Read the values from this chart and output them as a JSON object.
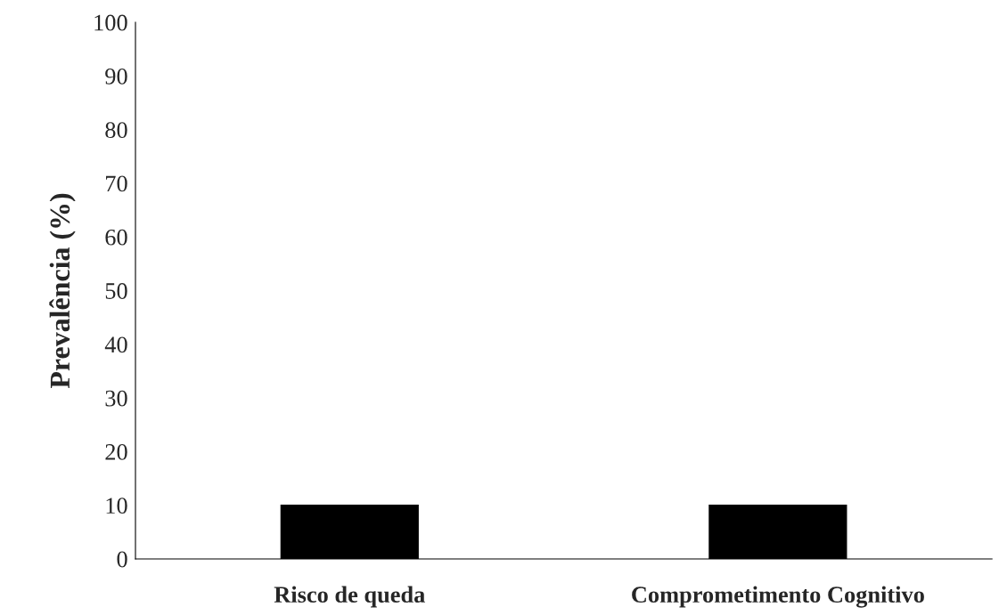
{
  "chart_data": {
    "type": "bar",
    "ylabel": "Prevalência (%)",
    "categories": [
      "Risco de queda",
      "Comprometimento Cognitivo"
    ],
    "values": [
      10,
      10
    ],
    "color": "#000000",
    "ylim": [
      0,
      100
    ],
    "yticks": [
      0,
      10,
      20,
      30,
      40,
      50,
      60,
      70,
      80,
      90,
      100
    ],
    "grid": false,
    "legend": false
  }
}
